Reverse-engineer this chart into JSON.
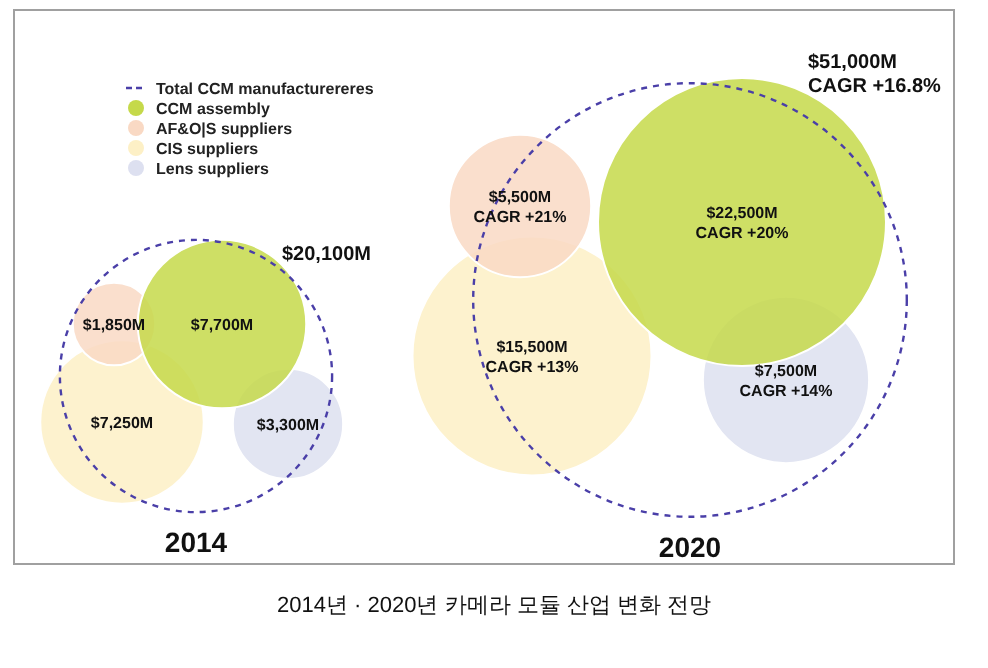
{
  "chart_data": {
    "type": "other",
    "title": "2014년 · 2020년 카메라 모듈 산업 변화 전망",
    "categories": [
      "2014",
      "2020"
    ],
    "legend": "top",
    "series": [
      {
        "name": "Total CCM manufacturereres",
        "color": "#4a3fa8",
        "line_style": "dashed",
        "values": [
          20100,
          51000
        ],
        "value_labels": [
          "$20,100M",
          "$51,000M"
        ]
      },
      {
        "name": "CCM assembly",
        "color": "#c5d94a",
        "values": [
          7700,
          22500
        ],
        "value_labels": [
          "$7,700M",
          "$22,500M"
        ]
      },
      {
        "name": "AF&O|S suppliers",
        "color": "#f9d9c4",
        "values": [
          1850,
          5500
        ],
        "value_labels": [
          "$1,850M",
          "$5,500M"
        ]
      },
      {
        "name": "CIS suppliers",
        "color": "#fdf0c6",
        "values": [
          7250,
          15500
        ],
        "value_labels": [
          "$7,250M",
          "$15,500M"
        ]
      },
      {
        "name": "Lens suppliers",
        "color": "#dde0f0",
        "values": [
          3300,
          7500
        ],
        "value_labels": [
          "$3,300M",
          "$7,500M"
        ]
      }
    ],
    "annotations": [
      "CAGR +16.8%",
      "CAGR +20%",
      "CAGR +21%",
      "CAGR +13%",
      "CAGR +14%"
    ]
  }
}
